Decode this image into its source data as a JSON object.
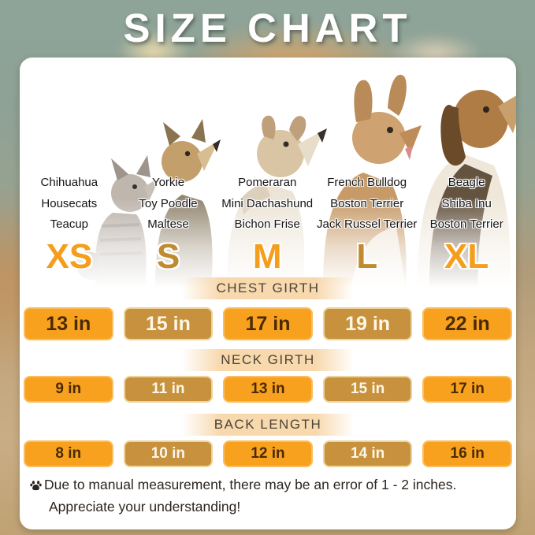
{
  "title": "SIZE CHART",
  "columns": [
    {
      "size": "XS",
      "variant": "bright",
      "breeds": [
        "Chihuahua",
        "Housecats",
        "Teacup"
      ]
    },
    {
      "size": "S",
      "variant": "dark",
      "breeds": [
        "Yorkie",
        "Toy Poodle",
        "Maltese"
      ]
    },
    {
      "size": "M",
      "variant": "bright",
      "breeds": [
        "Pomeraran",
        "Mini Dachashund",
        "Bichon Frise"
      ]
    },
    {
      "size": "L",
      "variant": "dark",
      "breeds": [
        "French Bulldog",
        "Boston Terrier",
        "Jack Russel Terrier"
      ]
    },
    {
      "size": "XL",
      "variant": "bright",
      "breeds": [
        "Beagle",
        "Shiba Inu",
        "Boston Terrier"
      ]
    }
  ],
  "measurements": [
    {
      "heading": "CHEST GIRTH",
      "values": [
        "13 in",
        "15 in",
        "17 in",
        "19 in",
        "22 in"
      ]
    },
    {
      "heading": "NECK GIRTH",
      "values": [
        "9 in",
        "11 in",
        "13 in",
        "15 in",
        "17 in"
      ]
    },
    {
      "heading": "BACK LENGTH",
      "values": [
        "8 in",
        "10 in",
        "12 in",
        "14 in",
        "16 in"
      ]
    }
  ],
  "footer": {
    "icon": "paw-icon",
    "line1": "Due to manual measurement, there may be an error of 1 - 2 inches.",
    "line2": "Appreciate your understanding!"
  },
  "animals": [
    {
      "name": "cat",
      "column": "XS"
    },
    {
      "name": "yorkie-dog",
      "column": "S"
    },
    {
      "name": "terrier-dog",
      "column": "M"
    },
    {
      "name": "french-bulldog",
      "column": "L"
    },
    {
      "name": "beagle-dog",
      "column": "XL"
    }
  ],
  "colors": {
    "pill_bright_bg": "#F8A11E",
    "pill_bright_border": "#FBBD5E",
    "pill_bright_text": "#4A2A00",
    "pill_dark_bg": "#C8913E",
    "pill_dark_border": "#ECD39B",
    "pill_dark_text": "#FDF7E5",
    "size_letter_bright": "#F59D1C",
    "size_letter_dark": "#C08B30",
    "heading_band": "#F8D9AE",
    "title_text": "#FFFFFF",
    "background_top": "#8FA499",
    "background_bottom": "#BFA173"
  },
  "chart_data": {
    "type": "table",
    "title": "SIZE CHART",
    "columns": [
      "XS",
      "S",
      "M",
      "L",
      "XL"
    ],
    "rows": [
      {
        "label": "CHEST GIRTH",
        "values_in": [
          13,
          15,
          17,
          19,
          22
        ]
      },
      {
        "label": "NECK GIRTH",
        "values_in": [
          9,
          11,
          13,
          15,
          17
        ]
      },
      {
        "label": "BACK LENGTH",
        "values_in": [
          8,
          10,
          12,
          14,
          16
        ]
      }
    ],
    "column_breeds": {
      "XS": [
        "Chihuahua",
        "Housecats",
        "Teacup"
      ],
      "S": [
        "Yorkie",
        "Toy Poodle",
        "Maltese"
      ],
      "M": [
        "Pomeraran",
        "Mini Dachashund",
        "Bichon Frise"
      ],
      "L": [
        "French Bulldog",
        "Boston Terrier",
        "Jack Russel Terrier"
      ],
      "XL": [
        "Beagle",
        "Shiba Inu",
        "Boston Terrier"
      ]
    },
    "note": "Due to manual measurement, there may be an error of 1 - 2 inches. Appreciate your understanding!"
  }
}
